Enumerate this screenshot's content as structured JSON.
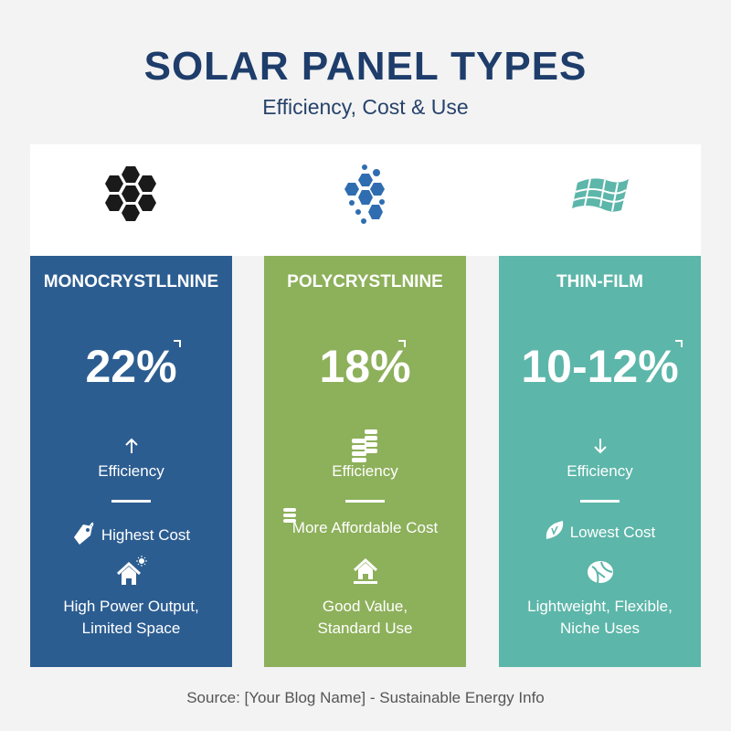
{
  "title": "SOLAR PANEL TYPES",
  "subtitle": "Efficiency, Cost & Use",
  "colors": {
    "title": "#1e3d6b",
    "mono": "#2c5d91",
    "poly": "#8db05a",
    "thin": "#5cb6a9"
  },
  "panels": [
    {
      "name": "MONOCRYSTLLNINE",
      "efficiency_value": "22%",
      "efficiency_trend_icon": "arrow-up-icon",
      "efficiency_label": "Efficiency",
      "cost_icon": "price-tag-icon",
      "cost": "Highest Cost",
      "use_icon": "house-sun-icon",
      "use_line1": "High Power Output,",
      "use_line2": "Limited Space",
      "top_icon": "hexagon-cluster-icon"
    },
    {
      "name": "POLYCRYSTLNINE",
      "efficiency_value": "18%",
      "efficiency_trend_icon": "coin-stack-icon",
      "efficiency_label": "Efficiency",
      "cost_icon": "coin-stack-icon",
      "cost": "More Affordable Cost",
      "use_icon": "house-icon",
      "use_line1": "Good Value,",
      "use_line2": "Standard Use",
      "top_icon": "scattered-hexagon-icon"
    },
    {
      "name": "THIN-FILM",
      "efficiency_value": "10-12%",
      "efficiency_trend_icon": "arrow-down-icon",
      "efficiency_label": "Efficiency",
      "cost_icon": "leaf-icon",
      "cost": "Lowest Cost",
      "use_icon": "flexible-ball-icon",
      "use_line1": "Lightweight, Flexible,",
      "use_line2": "Niche Uses",
      "top_icon": "flexible-panel-icon"
    }
  ],
  "source": "Source: [Your Blog Name] - Sustainable Energy Info"
}
